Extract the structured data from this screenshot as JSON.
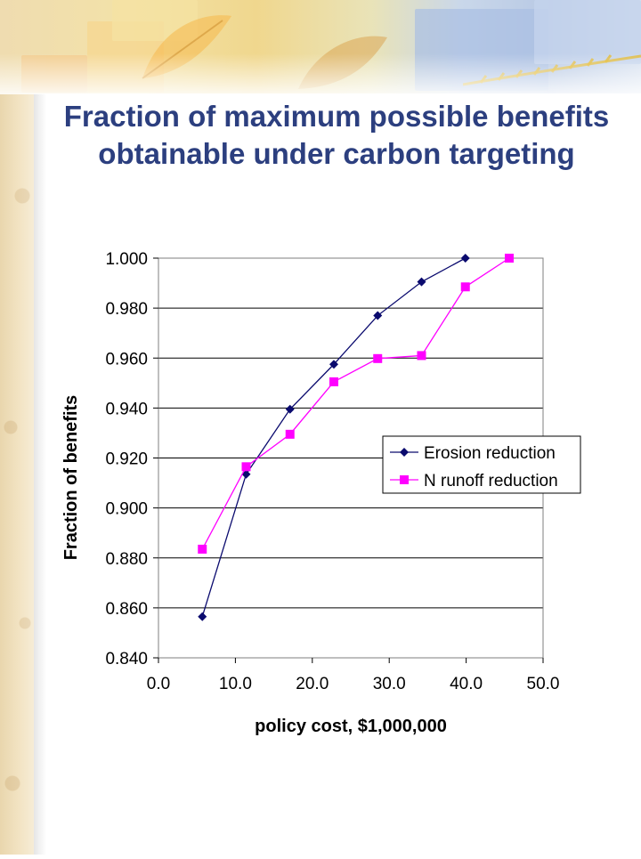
{
  "slide": {
    "title": "Fraction of maximum possible benefits obtainable under carbon targeting"
  },
  "colors": {
    "title": "#2c3f7f",
    "erosion_series": "#0a0a6e",
    "n_runoff_series": "#ff00ff",
    "gridline": "#000000"
  },
  "chart_data": {
    "type": "line",
    "title": "",
    "xlabel": "policy cost, $1,000,000",
    "ylabel": "Fraction of benefits",
    "xlim": [
      0,
      50
    ],
    "ylim": [
      0.84,
      1.0
    ],
    "x_ticks": [
      "0.0",
      "10.0",
      "20.0",
      "30.0",
      "40.0",
      "50.0"
    ],
    "y_ticks": [
      "0.840",
      "0.860",
      "0.880",
      "0.900",
      "0.920",
      "0.940",
      "0.960",
      "0.980",
      "1.000"
    ],
    "grid": "horizontal",
    "legend_position": "right",
    "series": [
      {
        "name": "Erosion reduction",
        "marker": "diamond",
        "x": [
          5.7,
          11.4,
          17.1,
          22.8,
          28.5,
          34.2,
          39.9
        ],
        "y": [
          0.8565,
          0.9135,
          0.9395,
          0.9575,
          0.977,
          0.9905,
          1.0
        ]
      },
      {
        "name": "N runoff reduction",
        "marker": "square",
        "x": [
          5.7,
          11.4,
          17.1,
          22.8,
          28.5,
          34.2,
          39.9,
          45.6
        ],
        "y": [
          0.8835,
          0.9165,
          0.9295,
          0.9505,
          0.9598,
          0.961,
          0.9885,
          1.0
        ]
      }
    ]
  }
}
